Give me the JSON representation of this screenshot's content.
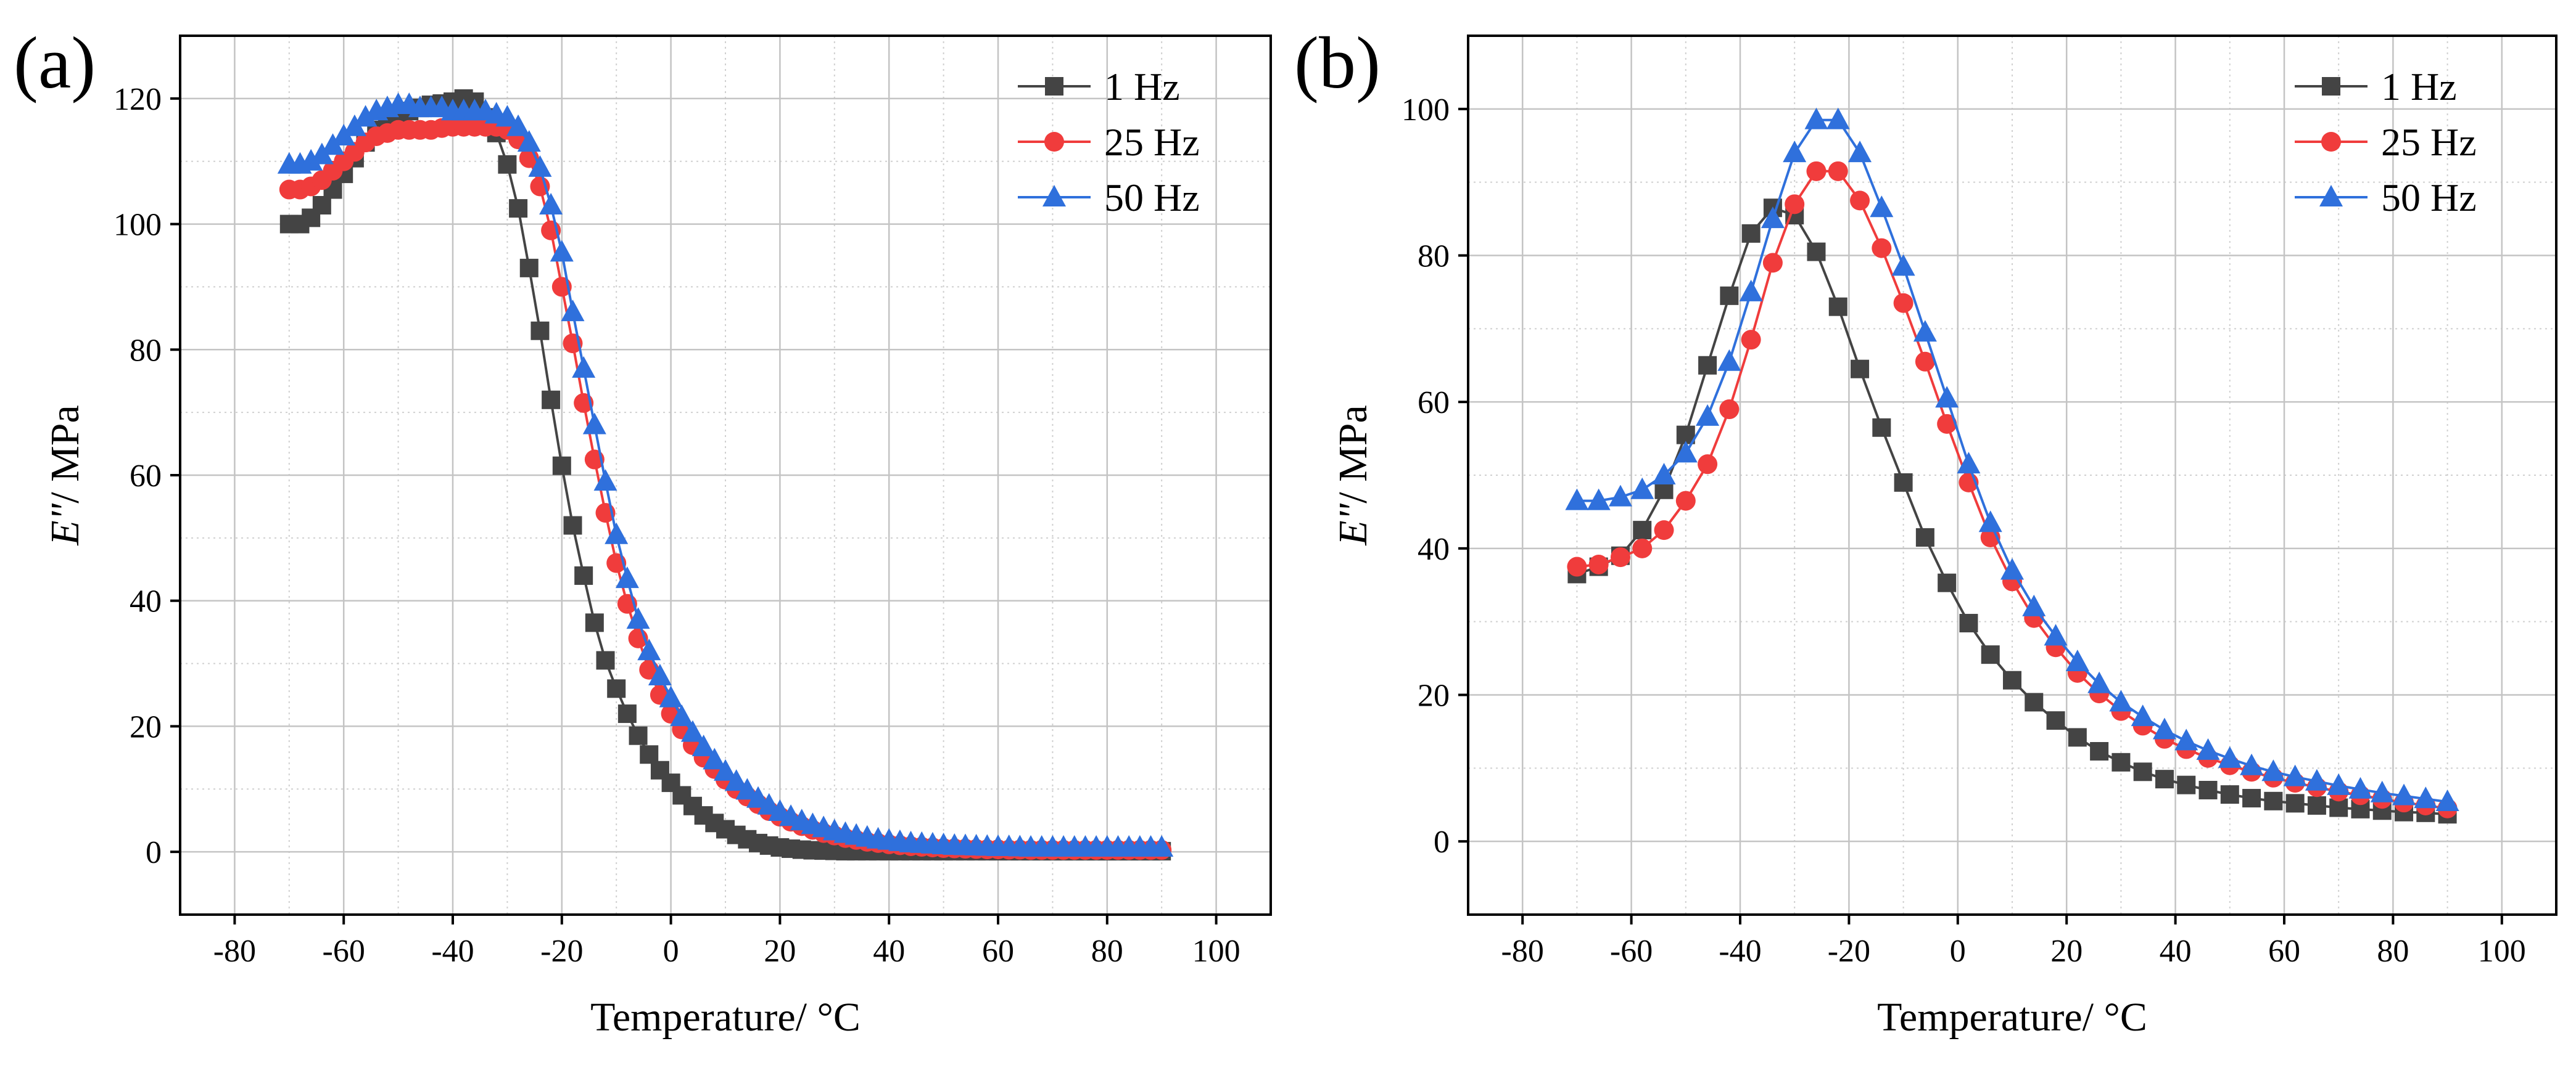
{
  "chart_data": [
    {
      "panel_label": "(a)",
      "type": "line",
      "xlabel": "Temperature/ °C",
      "ylabel_italic": "E\"",
      "ylabel_rest": "/ MPa",
      "xlim": [
        -90,
        110
      ],
      "ylim": [
        -10,
        130
      ],
      "xticks": [
        -80,
        -60,
        -40,
        -20,
        0,
        20,
        40,
        60,
        80,
        100
      ],
      "yticks": [
        0,
        20,
        40,
        60,
        80,
        100,
        120
      ],
      "grid": true,
      "legend_position": "top-right",
      "series": [
        {
          "name": "1 Hz",
          "marker": "square",
          "color": "#444444",
          "x": [
            -70,
            -68,
            -66,
            -64,
            -62,
            -60,
            -58,
            -56,
            -54,
            -52,
            -50,
            -48,
            -46,
            -44,
            -42,
            -40,
            -38,
            -36,
            -34,
            -32,
            -30,
            -28,
            -26,
            -24,
            -22,
            -20,
            -18,
            -16,
            -14,
            -12,
            -10,
            -8,
            -6,
            -4,
            -2,
            0,
            2,
            4,
            6,
            8,
            10,
            12,
            14,
            16,
            18,
            20,
            22,
            24,
            26,
            28,
            30,
            32,
            34,
            36,
            38,
            40,
            42,
            44,
            46,
            48,
            50,
            52,
            54,
            56,
            58,
            60,
            62,
            64,
            66,
            68,
            70,
            72,
            74,
            76,
            78,
            80,
            82,
            84,
            86,
            88,
            90
          ],
          "y": [
            100,
            100,
            101,
            103,
            105.5,
            108,
            110.5,
            113,
            115,
            116.5,
            117.5,
            118,
            118.5,
            119,
            119.2,
            119.5,
            120,
            119.5,
            117,
            114.5,
            109.5,
            102.5,
            93,
            83,
            72,
            61.5,
            52,
            44,
            36.5,
            30.5,
            26,
            22,
            18.5,
            15.5,
            13,
            11,
            9,
            7.3,
            5.8,
            4.6,
            3.6,
            2.7,
            2,
            1.4,
            1,
            0.7,
            0.5,
            0.35,
            0.25,
            0.2,
            0.15,
            0.1,
            0.1,
            0.1,
            0.1,
            0.1,
            0.1,
            0.1,
            0.1,
            0.1,
            0.1,
            0.1,
            0.1,
            0.1,
            0.1,
            0.1,
            0.1,
            0.1,
            0.1,
            0.1,
            0.1,
            0.1,
            0.1,
            0.1,
            0.1,
            0.1,
            0.1,
            0.1,
            0.1,
            0.1,
            0.1
          ]
        },
        {
          "name": "25 Hz",
          "marker": "circle",
          "color": "#f03c3c",
          "x": [
            -70,
            -68,
            -66,
            -64,
            -62,
            -60,
            -58,
            -56,
            -54,
            -52,
            -50,
            -48,
            -46,
            -44,
            -42,
            -40,
            -38,
            -36,
            -34,
            -32,
            -30,
            -28,
            -26,
            -24,
            -22,
            -20,
            -18,
            -16,
            -14,
            -12,
            -10,
            -8,
            -6,
            -4,
            -2,
            0,
            2,
            4,
            6,
            8,
            10,
            12,
            14,
            16,
            18,
            20,
            22,
            24,
            26,
            28,
            30,
            32,
            34,
            36,
            38,
            40,
            42,
            44,
            46,
            48,
            50,
            52,
            54,
            56,
            58,
            60,
            62,
            64,
            66,
            68,
            70,
            72,
            74,
            76,
            78,
            80,
            82,
            84,
            86,
            88,
            90
          ],
          "y": [
            105.5,
            105.5,
            106,
            107,
            108.5,
            110,
            111.5,
            113,
            114,
            114.5,
            115,
            115,
            115,
            115,
            115.3,
            115.5,
            115.5,
            115.5,
            115.5,
            115.5,
            115,
            113.5,
            110.5,
            106,
            99,
            90,
            81,
            71.5,
            62.5,
            54,
            46,
            39.5,
            34,
            29,
            25,
            22,
            19.5,
            17,
            15,
            13.2,
            11.5,
            10,
            8.8,
            7.6,
            6.5,
            5.6,
            4.8,
            4.1,
            3.5,
            3,
            2.6,
            2.2,
            1.9,
            1.6,
            1.4,
            1.2,
            1.05,
            0.9,
            0.8,
            0.7,
            0.6,
            0.55,
            0.5,
            0.45,
            0.4,
            0.4,
            0.35,
            0.35,
            0.3,
            0.3,
            0.3,
            0.3,
            0.3,
            0.3,
            0.3,
            0.3,
            0.3,
            0.3,
            0.3,
            0.3,
            0.3
          ]
        },
        {
          "name": "50 Hz",
          "marker": "triangle",
          "color": "#2f70dc",
          "x": [
            -70,
            -68,
            -66,
            -64,
            -62,
            -60,
            -58,
            -56,
            -54,
            -52,
            -50,
            -48,
            -46,
            -44,
            -42,
            -40,
            -38,
            -36,
            -34,
            -32,
            -30,
            -28,
            -26,
            -24,
            -22,
            -20,
            -18,
            -16,
            -14,
            -12,
            -10,
            -8,
            -6,
            -4,
            -2,
            0,
            2,
            4,
            6,
            8,
            10,
            12,
            14,
            16,
            18,
            20,
            22,
            24,
            26,
            28,
            30,
            32,
            34,
            36,
            38,
            40,
            42,
            44,
            46,
            48,
            50,
            52,
            54,
            56,
            58,
            60,
            62,
            64,
            66,
            68,
            70,
            72,
            74,
            76,
            78,
            80,
            82,
            84,
            86,
            88,
            90
          ],
          "y": [
            109.5,
            109.5,
            110,
            111,
            112.5,
            114,
            115.5,
            117,
            118,
            118.5,
            119,
            119,
            118.5,
            118.5,
            118.5,
            118,
            118,
            118,
            118,
            117.5,
            117,
            115.5,
            113,
            109,
            103,
            95.5,
            86,
            77,
            68,
            59,
            50.5,
            43.5,
            37,
            32,
            28,
            24.5,
            21.5,
            19,
            16.7,
            14.6,
            12.8,
            11.2,
            9.8,
            8.5,
            7.4,
            6.4,
            5.6,
            4.9,
            4.3,
            3.8,
            3.3,
            2.9,
            2.6,
            2.3,
            2,
            1.8,
            1.6,
            1.4,
            1.3,
            1.2,
            1.1,
            1,
            0.95,
            0.9,
            0.85,
            0.8,
            0.8,
            0.75,
            0.7,
            0.7,
            0.7,
            0.7,
            0.7,
            0.7,
            0.7,
            0.7,
            0.7,
            0.7,
            0.7,
            0.7,
            0.7
          ]
        }
      ]
    },
    {
      "panel_label": "(b)",
      "type": "line",
      "xlabel": "Temperature/ °C",
      "ylabel_italic": "E\"",
      "ylabel_rest": "/ MPa",
      "xlim": [
        -90,
        110
      ],
      "ylim": [
        -10,
        110
      ],
      "xticks": [
        -80,
        -60,
        -40,
        -20,
        0,
        20,
        40,
        60,
        80,
        100
      ],
      "yticks": [
        0,
        20,
        40,
        60,
        80,
        100
      ],
      "grid": true,
      "legend_position": "top-right",
      "series": [
        {
          "name": "1 Hz",
          "marker": "square",
          "color": "#444444",
          "x": [
            -70,
            -66,
            -62,
            -58,
            -54,
            -50,
            -46,
            -42,
            -38,
            -34,
            -30,
            -26,
            -22,
            -18,
            -14,
            -10,
            -6,
            -2,
            2,
            6,
            10,
            14,
            18,
            22,
            26,
            30,
            34,
            38,
            42,
            46,
            50,
            54,
            58,
            62,
            66,
            70,
            74,
            78,
            82,
            86,
            90
          ],
          "y": [
            36.5,
            37.5,
            39,
            42.5,
            48,
            55.5,
            65,
            74.5,
            83,
            86.5,
            85.5,
            80.5,
            73,
            64.5,
            56.5,
            49,
            41.5,
            35.3,
            29.8,
            25.5,
            22,
            19,
            16.5,
            14.2,
            12.3,
            10.8,
            9.5,
            8.5,
            7.7,
            7,
            6.4,
            5.9,
            5.5,
            5.2,
            4.9,
            4.6,
            4.4,
            4.2,
            4,
            3.9,
            3.7
          ]
        },
        {
          "name": "25 Hz",
          "marker": "circle",
          "color": "#f03c3c",
          "x": [
            -70,
            -66,
            -62,
            -58,
            -54,
            -50,
            -46,
            -42,
            -38,
            -34,
            -30,
            -26,
            -22,
            -18,
            -14,
            -10,
            -6,
            -2,
            2,
            6,
            10,
            14,
            18,
            22,
            26,
            30,
            34,
            38,
            42,
            46,
            50,
            54,
            58,
            62,
            66,
            70,
            74,
            78,
            82,
            86,
            90
          ],
          "y": [
            37.5,
            37.8,
            38.8,
            40,
            42.5,
            46.5,
            51.5,
            59,
            68.5,
            79,
            87,
            91.5,
            91.5,
            87.5,
            81,
            73.5,
            65.5,
            57,
            49,
            41.5,
            35.5,
            30.5,
            26.5,
            23,
            20.2,
            17.8,
            15.8,
            14,
            12.6,
            11.4,
            10.4,
            9.5,
            8.7,
            8,
            7.4,
            6.8,
            6.3,
            5.8,
            5.3,
            4.9,
            4.5
          ]
        },
        {
          "name": "50 Hz",
          "marker": "triangle",
          "color": "#2f70dc",
          "x": [
            -70,
            -66,
            -62,
            -58,
            -54,
            -50,
            -46,
            -42,
            -38,
            -34,
            -30,
            -26,
            -22,
            -18,
            -14,
            -10,
            -6,
            -2,
            2,
            6,
            10,
            14,
            18,
            22,
            26,
            30,
            34,
            38,
            42,
            46,
            50,
            54,
            58,
            62,
            66,
            70,
            74,
            78,
            82,
            86,
            90
          ],
          "y": [
            46.5,
            46.5,
            47,
            48,
            50,
            53,
            58,
            65.5,
            75,
            85,
            94,
            98.5,
            98.5,
            94,
            86.5,
            78.5,
            69.5,
            60.5,
            51.5,
            43.5,
            37,
            32,
            28,
            24.5,
            21.5,
            19,
            17,
            15.2,
            13.7,
            12.4,
            11.3,
            10.3,
            9.5,
            8.8,
            8.2,
            7.6,
            7.1,
            6.6,
            6.2,
            5.8,
            5.4
          ]
        }
      ]
    }
  ]
}
